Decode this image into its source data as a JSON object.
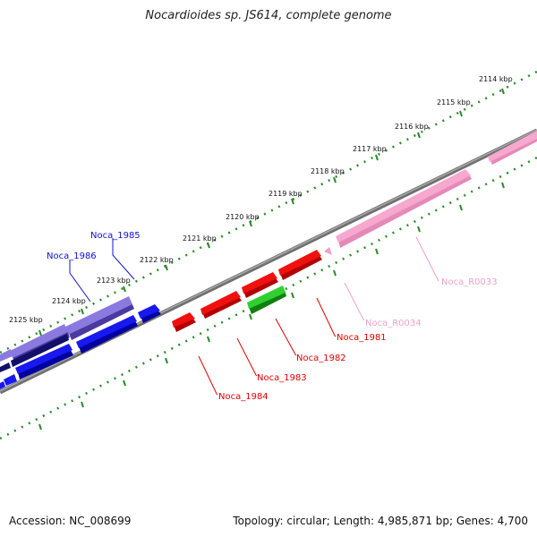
{
  "title": "Nocardioides sp. JS614, complete genome",
  "footer": {
    "accession": "Accession: NC_008699",
    "summary": "Topology: circular; Length: 4,985,871 bp; Genes: 4,700"
  },
  "colors": {
    "backbone": "#8a8a8a",
    "ticks": "#2a8a2a",
    "blue": "#1010e0",
    "dark_blue": "#10107a",
    "purple": "#7060c8",
    "red": "#e00000",
    "green": "#20b020",
    "pink": "#f0a0c8"
  },
  "tick_labels": [
    "2114 kbp",
    "2115 kbp",
    "2116 kbp",
    "2117 kbp",
    "2118 kbp",
    "2119 kbp",
    "2120 kbp",
    "2121 kbp",
    "2122 kbp",
    "2123 kbp",
    "2124 kbp",
    "2125 kbp"
  ],
  "gene_labels": [
    "Noca_1985",
    "Noca_1986",
    "Noca_R0033",
    "Noca_R0034",
    "Noca_1981",
    "Noca_1982",
    "Noca_1983",
    "Noca_1984"
  ]
}
